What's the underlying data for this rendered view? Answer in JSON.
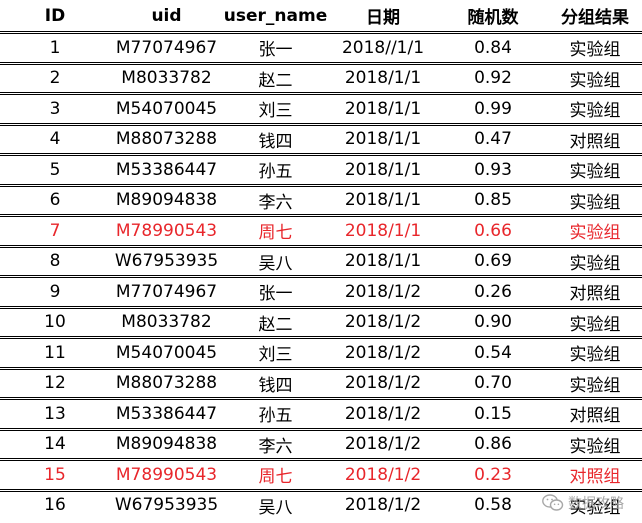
{
  "columns": {
    "id": "ID",
    "uid": "uid",
    "user_name": "user_name",
    "date": "日期",
    "random": "随机数",
    "group": "分组结果"
  },
  "rows": [
    {
      "id": "1",
      "uid": "M77074967",
      "user_name": "张一",
      "date": "2018//1/1",
      "random": "0.84",
      "group": "实验组",
      "highlight": false
    },
    {
      "id": "2",
      "uid": "M8033782",
      "user_name": "赵二",
      "date": "2018/1/1",
      "random": "0.92",
      "group": "实验组",
      "highlight": false
    },
    {
      "id": "3",
      "uid": "M54070045",
      "user_name": "刘三",
      "date": "2018/1/1",
      "random": "0.99",
      "group": "实验组",
      "highlight": false
    },
    {
      "id": "4",
      "uid": "M88073288",
      "user_name": "钱四",
      "date": "2018/1/1",
      "random": "0.47",
      "group": "对照组",
      "highlight": false
    },
    {
      "id": "5",
      "uid": "M53386447",
      "user_name": "孙五",
      "date": "2018/1/1",
      "random": "0.93",
      "group": "实验组",
      "highlight": false
    },
    {
      "id": "6",
      "uid": "M89094838",
      "user_name": "李六",
      "date": "2018/1/1",
      "random": "0.85",
      "group": "实验组",
      "highlight": false
    },
    {
      "id": "7",
      "uid": "M78990543",
      "user_name": "周七",
      "date": "2018/1/1",
      "random": "0.66",
      "group": "实验组",
      "highlight": true
    },
    {
      "id": "8",
      "uid": "W67953935",
      "user_name": "吴八",
      "date": "2018/1/1",
      "random": "0.69",
      "group": "实验组",
      "highlight": false
    },
    {
      "id": "9",
      "uid": "M77074967",
      "user_name": "张一",
      "date": "2018/1/2",
      "random": "0.26",
      "group": "对照组",
      "highlight": false
    },
    {
      "id": "10",
      "uid": "M8033782",
      "user_name": "赵二",
      "date": "2018/1/2",
      "random": "0.90",
      "group": "实验组",
      "highlight": false
    },
    {
      "id": "11",
      "uid": "M54070045",
      "user_name": "刘三",
      "date": "2018/1/2",
      "random": "0.54",
      "group": "实验组",
      "highlight": false
    },
    {
      "id": "12",
      "uid": "M88073288",
      "user_name": "钱四",
      "date": "2018/1/2",
      "random": "0.70",
      "group": "实验组",
      "highlight": false
    },
    {
      "id": "13",
      "uid": "M53386447",
      "user_name": "孙五",
      "date": "2018/1/2",
      "random": "0.15",
      "group": "对照组",
      "highlight": false
    },
    {
      "id": "14",
      "uid": "M89094838",
      "user_name": "李六",
      "date": "2018/1/2",
      "random": "0.86",
      "group": "实验组",
      "highlight": false
    },
    {
      "id": "15",
      "uid": "M78990543",
      "user_name": "周七",
      "date": "2018/1/2",
      "random": "0.23",
      "group": "对照组",
      "highlight": true
    },
    {
      "id": "16",
      "uid": "W67953935",
      "user_name": "吴八",
      "date": "2018/1/2",
      "random": "0.58",
      "group": "实验组",
      "highlight": false
    }
  ],
  "colors": {
    "highlight": "#e8262b",
    "text": "#000000",
    "watermark": "#9a9a9a"
  },
  "watermark": {
    "icon": "wechat-icon",
    "text": "数据攻略"
  }
}
